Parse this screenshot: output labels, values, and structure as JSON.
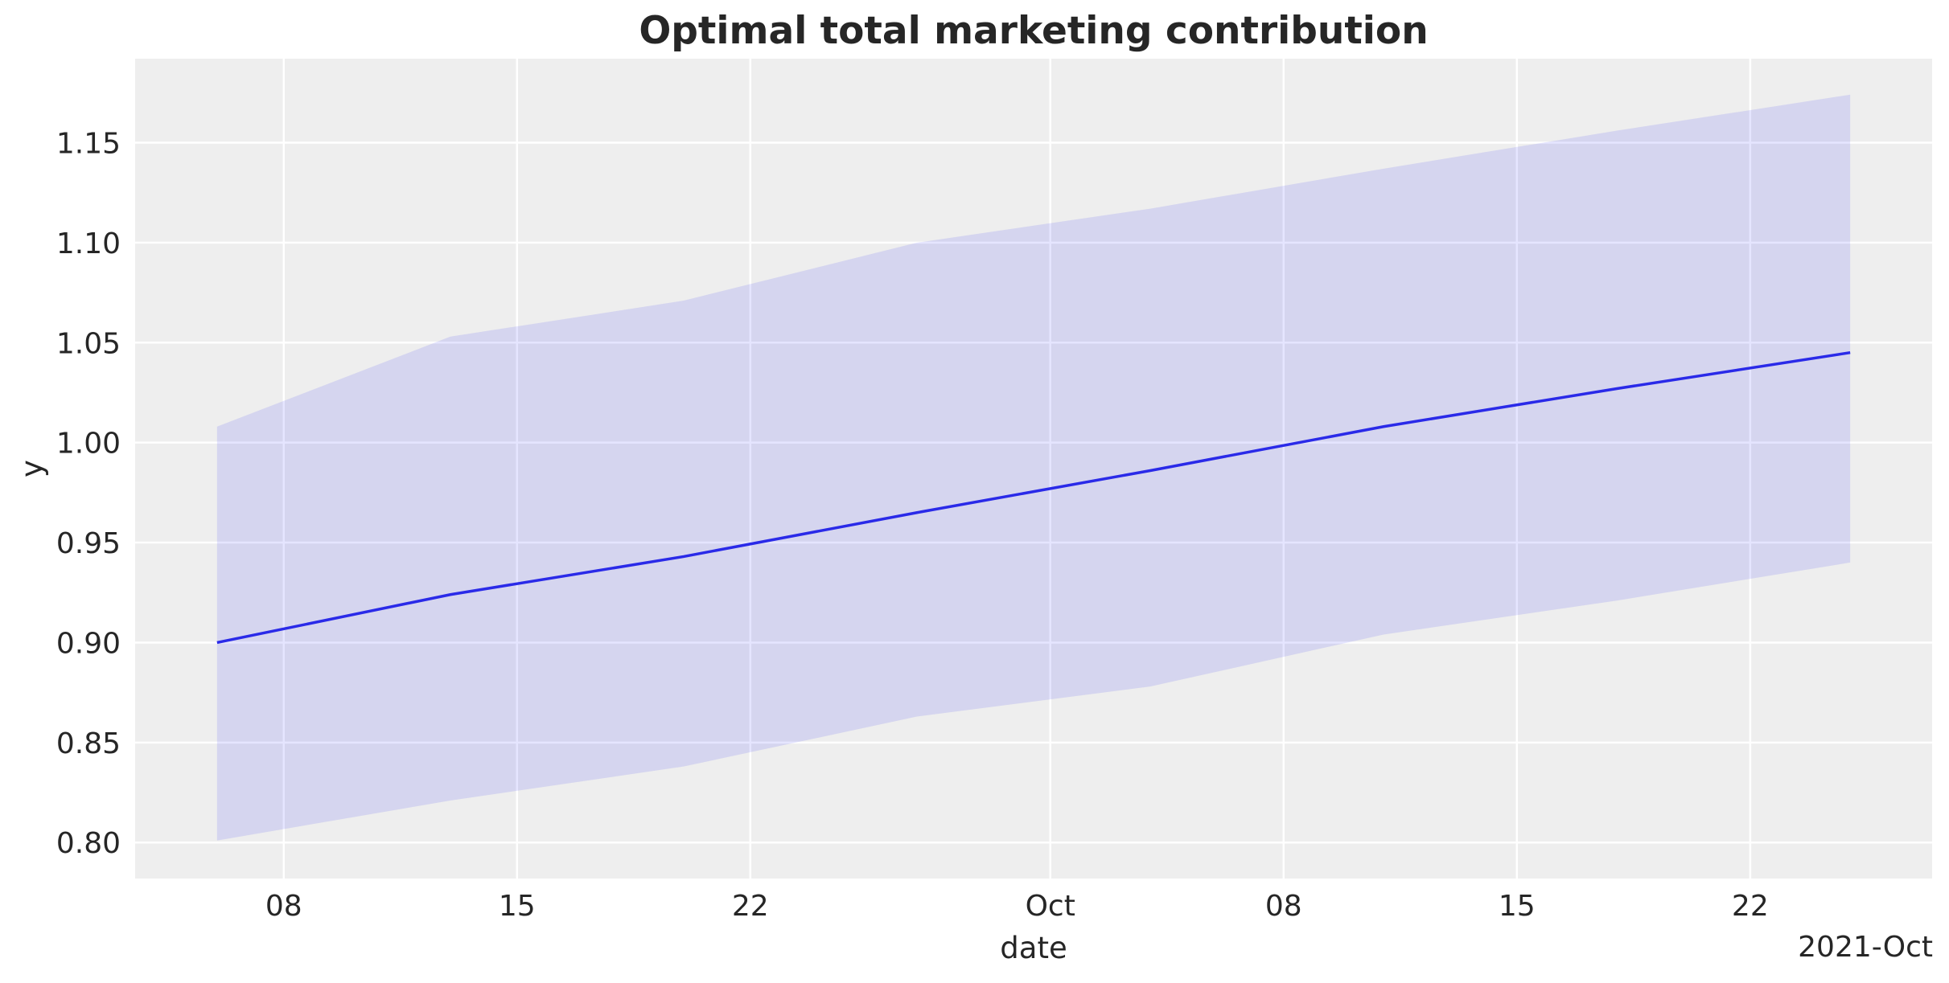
{
  "chart_data": {
    "type": "line",
    "title": "Optimal total marketing contribution",
    "xlabel": "date",
    "ylabel": "y",
    "x_offset_label": "2021-Oct",
    "x": [
      "2021-09-06",
      "2021-09-13",
      "2021-09-20",
      "2021-09-27",
      "2021-10-04",
      "2021-10-11",
      "2021-10-18",
      "2021-10-25"
    ],
    "series": [
      {
        "values": [
          0.9,
          0.924,
          0.943,
          0.965,
          0.986,
          1.008,
          1.027,
          1.045
        ],
        "color": "#2a2ae8"
      }
    ],
    "band": {
      "upper": [
        1.008,
        1.053,
        1.071,
        1.1,
        1.117,
        1.137,
        1.156,
        1.174
      ],
      "lower": [
        0.801,
        0.821,
        0.838,
        0.863,
        0.878,
        0.904,
        0.921,
        0.94
      ],
      "color": "#0000ff",
      "opacity": 0.1
    },
    "xlim": [
      "2021-09-03T13:00",
      "2021-10-27T11:00"
    ],
    "ylim": [
      0.782,
      1.192
    ],
    "yticks": [
      "0.80",
      "0.85",
      "0.90",
      "0.95",
      "1.00",
      "1.05",
      "1.10",
      "1.15"
    ],
    "xticks": [
      {
        "date": "2021-09-08",
        "label": "08"
      },
      {
        "date": "2021-09-15",
        "label": "15"
      },
      {
        "date": "2021-09-22",
        "label": "22"
      },
      {
        "date": "2021-10-01",
        "label": "Oct"
      },
      {
        "date": "2021-10-08",
        "label": "08"
      },
      {
        "date": "2021-10-15",
        "label": "15"
      },
      {
        "date": "2021-10-22",
        "label": "22"
      }
    ],
    "grid": true,
    "background": "#eeeeee"
  }
}
